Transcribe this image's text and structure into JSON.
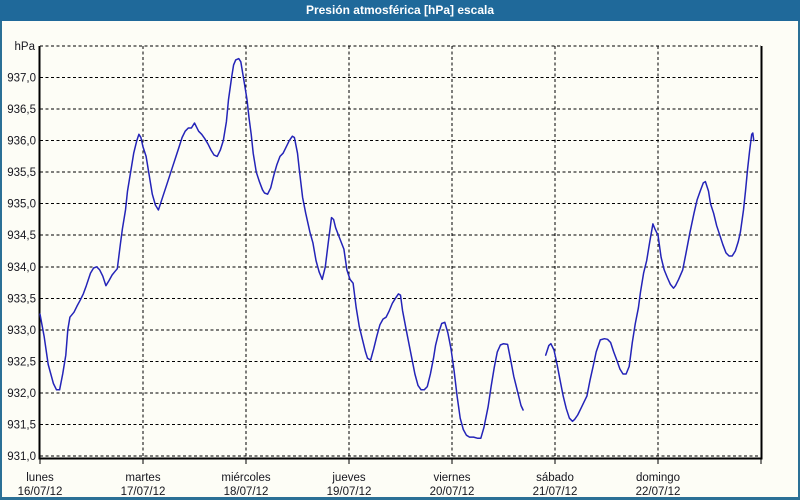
{
  "window": {
    "title": "Presión atmosférica [hPa] escala"
  },
  "colors": {
    "titlebar": "#1f699a",
    "frame": "#2b7096",
    "content_background": "#fdfdf6",
    "line": "#2424b8",
    "grid": "#000000",
    "axis_text": "#16161e"
  },
  "chart_data": {
    "type": "line",
    "title": "Presión atmosférica [hPa] escala",
    "grid": "dashed",
    "legend": "none",
    "ylim": [
      931.0,
      937.5
    ],
    "xlim_days": [
      0,
      7
    ],
    "y_axis": {
      "unit_label": "hPa",
      "tick_step": 0.5,
      "ticks": [
        {
          "value": 937.0,
          "label": "937,0"
        },
        {
          "value": 936.5,
          "label": "936,5"
        },
        {
          "value": 936.0,
          "label": "936,0"
        },
        {
          "value": 935.5,
          "label": "935,5"
        },
        {
          "value": 935.0,
          "label": "935,0"
        },
        {
          "value": 934.5,
          "label": "934,5"
        },
        {
          "value": 934.0,
          "label": "934,0"
        },
        {
          "value": 933.5,
          "label": "933,5"
        },
        {
          "value": 933.0,
          "label": "933,0"
        },
        {
          "value": 932.5,
          "label": "932,5"
        },
        {
          "value": 932.0,
          "label": "932,0"
        },
        {
          "value": 931.5,
          "label": "931,5"
        },
        {
          "value": 931.0,
          "label": "931,0"
        }
      ]
    },
    "x_axis": {
      "days": [
        {
          "name": "lunes",
          "date": "16/07/12"
        },
        {
          "name": "martes",
          "date": "17/07/12"
        },
        {
          "name": "miércoles",
          "date": "18/07/12"
        },
        {
          "name": "jueves",
          "date": "19/07/12"
        },
        {
          "name": "viernes",
          "date": "20/07/12"
        },
        {
          "name": "sábado",
          "date": "21/07/12"
        },
        {
          "name": "domingo",
          "date": "22/07/12"
        }
      ]
    },
    "series": [
      {
        "name": "Presión atmosférica",
        "unit": "hPa",
        "t_unit": "days from lunes 16/07/12 00:00",
        "segments": [
          [
            [
              0.0,
              933.25
            ],
            [
              0.04,
              932.9
            ],
            [
              0.08,
              932.45
            ],
            [
              0.13,
              932.15
            ],
            [
              0.16,
              932.05
            ],
            [
              0.19,
              932.05
            ],
            [
              0.22,
              932.3
            ],
            [
              0.25,
              932.6
            ],
            [
              0.27,
              933.0
            ],
            [
              0.29,
              933.2
            ],
            [
              0.33,
              933.28
            ],
            [
              0.36,
              933.38
            ],
            [
              0.39,
              933.47
            ],
            [
              0.42,
              933.57
            ],
            [
              0.45,
              933.7
            ],
            [
              0.49,
              933.9
            ],
            [
              0.52,
              933.98
            ],
            [
              0.55,
              934.0
            ],
            [
              0.58,
              933.95
            ],
            [
              0.61,
              933.85
            ],
            [
              0.64,
              933.7
            ],
            [
              0.67,
              933.78
            ],
            [
              0.7,
              933.87
            ],
            [
              0.73,
              933.93
            ],
            [
              0.75,
              933.97
            ],
            [
              0.78,
              934.35
            ],
            [
              0.8,
              934.6
            ],
            [
              0.83,
              934.9
            ],
            [
              0.85,
              935.2
            ],
            [
              0.88,
              935.5
            ],
            [
              0.91,
              935.8
            ],
            [
              0.94,
              936.0
            ],
            [
              0.96,
              936.1
            ],
            [
              0.98,
              936.05
            ],
            [
              1.0,
              935.9
            ],
            [
              1.03,
              935.75
            ],
            [
              1.06,
              935.45
            ],
            [
              1.09,
              935.15
            ],
            [
              1.12,
              934.98
            ],
            [
              1.15,
              934.9
            ],
            [
              1.17,
              935.0
            ],
            [
              1.2,
              935.15
            ],
            [
              1.23,
              935.3
            ],
            [
              1.26,
              935.45
            ],
            [
              1.29,
              935.6
            ],
            [
              1.32,
              935.75
            ],
            [
              1.35,
              935.9
            ],
            [
              1.38,
              936.05
            ],
            [
              1.41,
              936.15
            ],
            [
              1.44,
              936.2
            ],
            [
              1.47,
              936.2
            ],
            [
              1.5,
              936.28
            ],
            [
              1.54,
              936.15
            ],
            [
              1.57,
              936.1
            ],
            [
              1.6,
              936.03
            ],
            [
              1.63,
              935.95
            ],
            [
              1.66,
              935.85
            ],
            [
              1.69,
              935.77
            ],
            [
              1.72,
              935.75
            ],
            [
              1.75,
              935.85
            ],
            [
              1.78,
              936.0
            ],
            [
              1.81,
              936.3
            ],
            [
              1.83,
              936.65
            ],
            [
              1.86,
              937.0
            ],
            [
              1.88,
              937.2
            ],
            [
              1.9,
              937.28
            ],
            [
              1.93,
              937.3
            ],
            [
              1.95,
              937.25
            ],
            [
              1.97,
              937.05
            ],
            [
              1.99,
              936.85
            ],
            [
              2.01,
              936.65
            ],
            [
              2.03,
              936.35
            ],
            [
              2.05,
              936.1
            ],
            [
              2.07,
              935.8
            ],
            [
              2.1,
              935.5
            ],
            [
              2.13,
              935.35
            ],
            [
              2.16,
              935.22
            ],
            [
              2.18,
              935.17
            ],
            [
              2.21,
              935.15
            ],
            [
              2.24,
              935.25
            ],
            [
              2.27,
              935.45
            ],
            [
              2.3,
              935.62
            ],
            [
              2.33,
              935.75
            ],
            [
              2.36,
              935.8
            ],
            [
              2.39,
              935.9
            ],
            [
              2.42,
              936.0
            ],
            [
              2.45,
              936.07
            ],
            [
              2.47,
              936.05
            ],
            [
              2.5,
              935.8
            ],
            [
              2.52,
              935.5
            ],
            [
              2.55,
              935.1
            ],
            [
              2.58,
              934.85
            ],
            [
              2.62,
              934.55
            ],
            [
              2.65,
              934.38
            ],
            [
              2.68,
              934.1
            ],
            [
              2.71,
              933.92
            ],
            [
              2.74,
              933.8
            ],
            [
              2.77,
              934.0
            ],
            [
              2.8,
              934.4
            ],
            [
              2.83,
              934.78
            ],
            [
              2.85,
              934.75
            ],
            [
              2.87,
              934.62
            ],
            [
              2.91,
              934.45
            ],
            [
              2.95,
              934.28
            ],
            [
              2.98,
              933.95
            ],
            [
              3.01,
              933.8
            ],
            [
              3.04,
              933.74
            ],
            [
              3.07,
              933.35
            ],
            [
              3.1,
              933.05
            ],
            [
              3.13,
              932.85
            ],
            [
              3.16,
              932.65
            ],
            [
              3.18,
              932.55
            ],
            [
              3.21,
              932.52
            ],
            [
              3.24,
              932.7
            ],
            [
              3.27,
              932.9
            ],
            [
              3.3,
              933.08
            ],
            [
              3.33,
              933.17
            ],
            [
              3.36,
              933.2
            ],
            [
              3.39,
              933.3
            ],
            [
              3.42,
              933.42
            ],
            [
              3.45,
              933.5
            ],
            [
              3.48,
              933.57
            ],
            [
              3.5,
              933.55
            ],
            [
              3.52,
              933.3
            ],
            [
              3.55,
              933.05
            ],
            [
              3.58,
              932.8
            ],
            [
              3.61,
              932.55
            ],
            [
              3.64,
              932.3
            ],
            [
              3.67,
              932.12
            ],
            [
              3.7,
              932.05
            ],
            [
              3.73,
              932.05
            ],
            [
              3.76,
              932.1
            ],
            [
              3.79,
              932.3
            ],
            [
              3.82,
              932.55
            ],
            [
              3.84,
              932.75
            ],
            [
              3.87,
              932.95
            ],
            [
              3.9,
              933.1
            ],
            [
              3.93,
              933.12
            ],
            [
              3.96,
              932.95
            ],
            [
              3.99,
              932.7
            ],
            [
              4.02,
              932.35
            ],
            [
              4.05,
              931.95
            ],
            [
              4.08,
              931.6
            ],
            [
              4.11,
              931.42
            ],
            [
              4.14,
              931.33
            ],
            [
              4.17,
              931.3
            ],
            [
              4.21,
              931.3
            ],
            [
              4.25,
              931.28
            ],
            [
              4.28,
              931.28
            ],
            [
              4.31,
              931.45
            ],
            [
              4.35,
              931.78
            ],
            [
              4.38,
              932.1
            ],
            [
              4.41,
              932.4
            ],
            [
              4.44,
              932.65
            ],
            [
              4.47,
              932.76
            ],
            [
              4.5,
              932.78
            ],
            [
              4.54,
              932.77
            ],
            [
              4.57,
              932.52
            ],
            [
              4.6,
              932.26
            ],
            [
              4.64,
              932.0
            ],
            [
              4.67,
              931.8
            ],
            [
              4.69,
              931.73
            ]
          ],
          [
            [
              4.91,
              932.6
            ],
            [
              4.94,
              932.75
            ],
            [
              4.96,
              932.78
            ],
            [
              4.99,
              932.68
            ],
            [
              5.02,
              932.45
            ],
            [
              5.05,
              932.2
            ],
            [
              5.08,
              931.95
            ],
            [
              5.11,
              931.75
            ],
            [
              5.14,
              931.6
            ],
            [
              5.17,
              931.55
            ],
            [
              5.19,
              931.58
            ],
            [
              5.22,
              931.65
            ],
            [
              5.25,
              931.75
            ],
            [
              5.28,
              931.85
            ],
            [
              5.31,
              931.95
            ],
            [
              5.34,
              932.2
            ],
            [
              5.37,
              932.42
            ],
            [
              5.4,
              932.65
            ],
            [
              5.44,
              932.84
            ],
            [
              5.48,
              932.86
            ],
            [
              5.51,
              932.85
            ],
            [
              5.54,
              932.8
            ],
            [
              5.57,
              932.65
            ],
            [
              5.6,
              932.52
            ],
            [
              5.63,
              932.38
            ],
            [
              5.66,
              932.3
            ],
            [
              5.69,
              932.3
            ],
            [
              5.72,
              932.42
            ],
            [
              5.75,
              932.8
            ],
            [
              5.78,
              933.1
            ],
            [
              5.81,
              933.35
            ],
            [
              5.83,
              933.6
            ],
            [
              5.86,
              933.9
            ],
            [
              5.89,
              934.1
            ],
            [
              5.92,
              934.4
            ],
            [
              5.95,
              934.68
            ],
            [
              5.97,
              934.6
            ],
            [
              6.0,
              934.5
            ],
            [
              6.03,
              934.15
            ],
            [
              6.06,
              933.95
            ],
            [
              6.09,
              933.83
            ],
            [
              6.12,
              933.72
            ],
            [
              6.15,
              933.66
            ],
            [
              6.17,
              933.7
            ],
            [
              6.2,
              933.8
            ],
            [
              6.24,
              933.95
            ],
            [
              6.27,
              934.2
            ],
            [
              6.31,
              934.54
            ],
            [
              6.35,
              934.85
            ],
            [
              6.38,
              935.06
            ],
            [
              6.41,
              935.2
            ],
            [
              6.44,
              935.33
            ],
            [
              6.46,
              935.35
            ],
            [
              6.49,
              935.2
            ],
            [
              6.51,
              935.0
            ],
            [
              6.54,
              934.85
            ],
            [
              6.57,
              934.65
            ],
            [
              6.6,
              934.5
            ],
            [
              6.63,
              934.35
            ],
            [
              6.66,
              934.22
            ],
            [
              6.69,
              934.17
            ],
            [
              6.72,
              934.17
            ],
            [
              6.75,
              934.25
            ],
            [
              6.78,
              934.4
            ],
            [
              6.8,
              934.55
            ],
            [
              6.83,
              934.9
            ],
            [
              6.85,
              935.2
            ],
            [
              6.87,
              935.55
            ],
            [
              6.89,
              935.85
            ],
            [
              6.91,
              936.1
            ],
            [
              6.92,
              936.12
            ],
            [
              6.93,
              936.0
            ]
          ]
        ]
      }
    ]
  }
}
